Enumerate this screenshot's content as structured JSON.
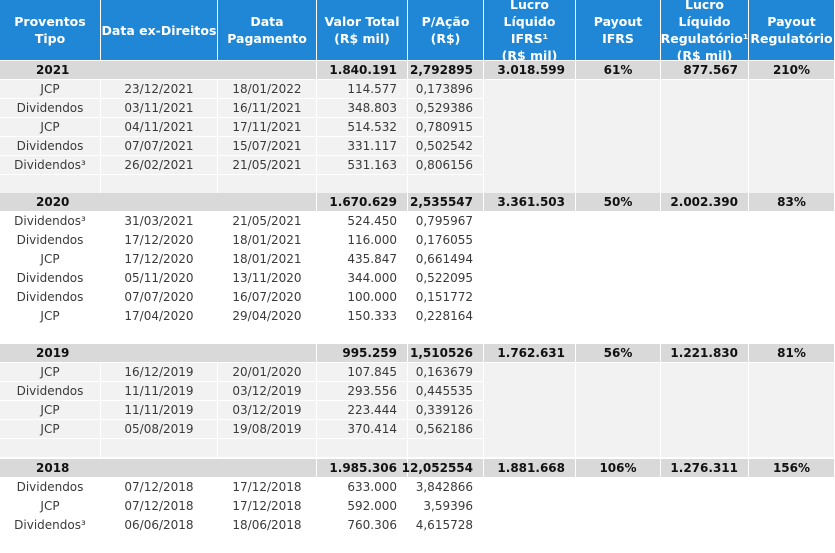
{
  "colors": {
    "header_bg": "#1f87d6",
    "header_text": "#ffffff",
    "year_row_bg": "#d9d9d9",
    "cell_gray": "#f2f2f2",
    "gridline": "#ffffff"
  },
  "headers": [
    "Proventos Tipo",
    "Data ex-Direitos",
    "Data\nPagamento",
    "Valor Total\n(R$ mil)",
    "P/Ação (R$)",
    "Lucro Líquido\nIFRS¹\n(R$ mil)",
    "Payout\nIFRS",
    "Lucro Líquido\nRegulatório¹\n(R$ mil)",
    "Payout\nRegulatório"
  ],
  "years": [
    {
      "year": "2021",
      "valor_total": "1.840.191",
      "p_acao": "2,792895",
      "lucro_ifrs": "3.018.599",
      "payout_ifrs": "61%",
      "lucro_reg": "877.567",
      "payout_reg": "210%",
      "rows": [
        [
          "JCP",
          "23/12/2021",
          "18/01/2022",
          "114.577",
          "0,173896"
        ],
        [
          "Dividendos",
          "03/11/2021",
          "16/11/2021",
          "348.803",
          "0,529386"
        ],
        [
          "JCP",
          "04/11/2021",
          "17/11/2021",
          "514.532",
          "0,780915"
        ],
        [
          "Dividendos",
          "07/07/2021",
          "15/07/2021",
          "331.117",
          "0,502542"
        ],
        [
          "Dividendos³",
          "26/02/2021",
          "21/05/2021",
          "531.163",
          "0,806156"
        ]
      ]
    },
    {
      "year": "2020",
      "valor_total": "1.670.629",
      "p_acao": "2,535547",
      "lucro_ifrs": "3.361.503",
      "payout_ifrs": "50%",
      "lucro_reg": "2.002.390",
      "payout_reg": "83%",
      "rows": [
        [
          "Dividendos³",
          "31/03/2021",
          "21/05/2021",
          "524.450",
          "0,795967"
        ],
        [
          "Dividendos",
          "17/12/2020",
          "18/01/2021",
          "116.000",
          "0,176055"
        ],
        [
          "JCP",
          "17/12/2020",
          "18/01/2021",
          "435.847",
          "0,661494"
        ],
        [
          "Dividendos",
          "05/11/2020",
          "13/11/2020",
          "344.000",
          "0,522095"
        ],
        [
          "Dividendos",
          "07/07/2020",
          "16/07/2020",
          "100.000",
          "0,151772"
        ],
        [
          "JCP",
          "17/04/2020",
          "29/04/2020",
          "150.333",
          "0,228164"
        ]
      ]
    },
    {
      "year": "2019",
      "valor_total": "995.259",
      "p_acao": "1,510526",
      "lucro_ifrs": "1.762.631",
      "payout_ifrs": "56%",
      "lucro_reg": "1.221.830",
      "payout_reg": "81%",
      "rows": [
        [
          "JCP",
          "16/12/2019",
          "20/01/2020",
          "107.845",
          "0,163679"
        ],
        [
          "Dividendos",
          "11/11/2019",
          "03/12/2019",
          "293.556",
          "0,445535"
        ],
        [
          "JCP",
          "11/11/2019",
          "03/12/2019",
          "223.444",
          "0,339126"
        ],
        [
          "JCP",
          "05/08/2019",
          "19/08/2019",
          "370.414",
          "0,562186"
        ]
      ]
    },
    {
      "year": "2018",
      "valor_total": "1.985.306",
      "p_acao": "12,052554",
      "lucro_ifrs": "1.881.668",
      "payout_ifrs": "106%",
      "lucro_reg": "1.276.311",
      "payout_reg": "156%",
      "rows": [
        [
          "Dividendos",
          "07/12/2018",
          "17/12/2018",
          "633.000",
          "3,842866"
        ],
        [
          "JCP",
          "07/12/2018",
          "17/12/2018",
          "592.000",
          "3,59396"
        ],
        [
          "Dividendos³",
          "06/06/2018",
          "18/06/2018",
          "760.306",
          "4,615728"
        ]
      ]
    }
  ]
}
